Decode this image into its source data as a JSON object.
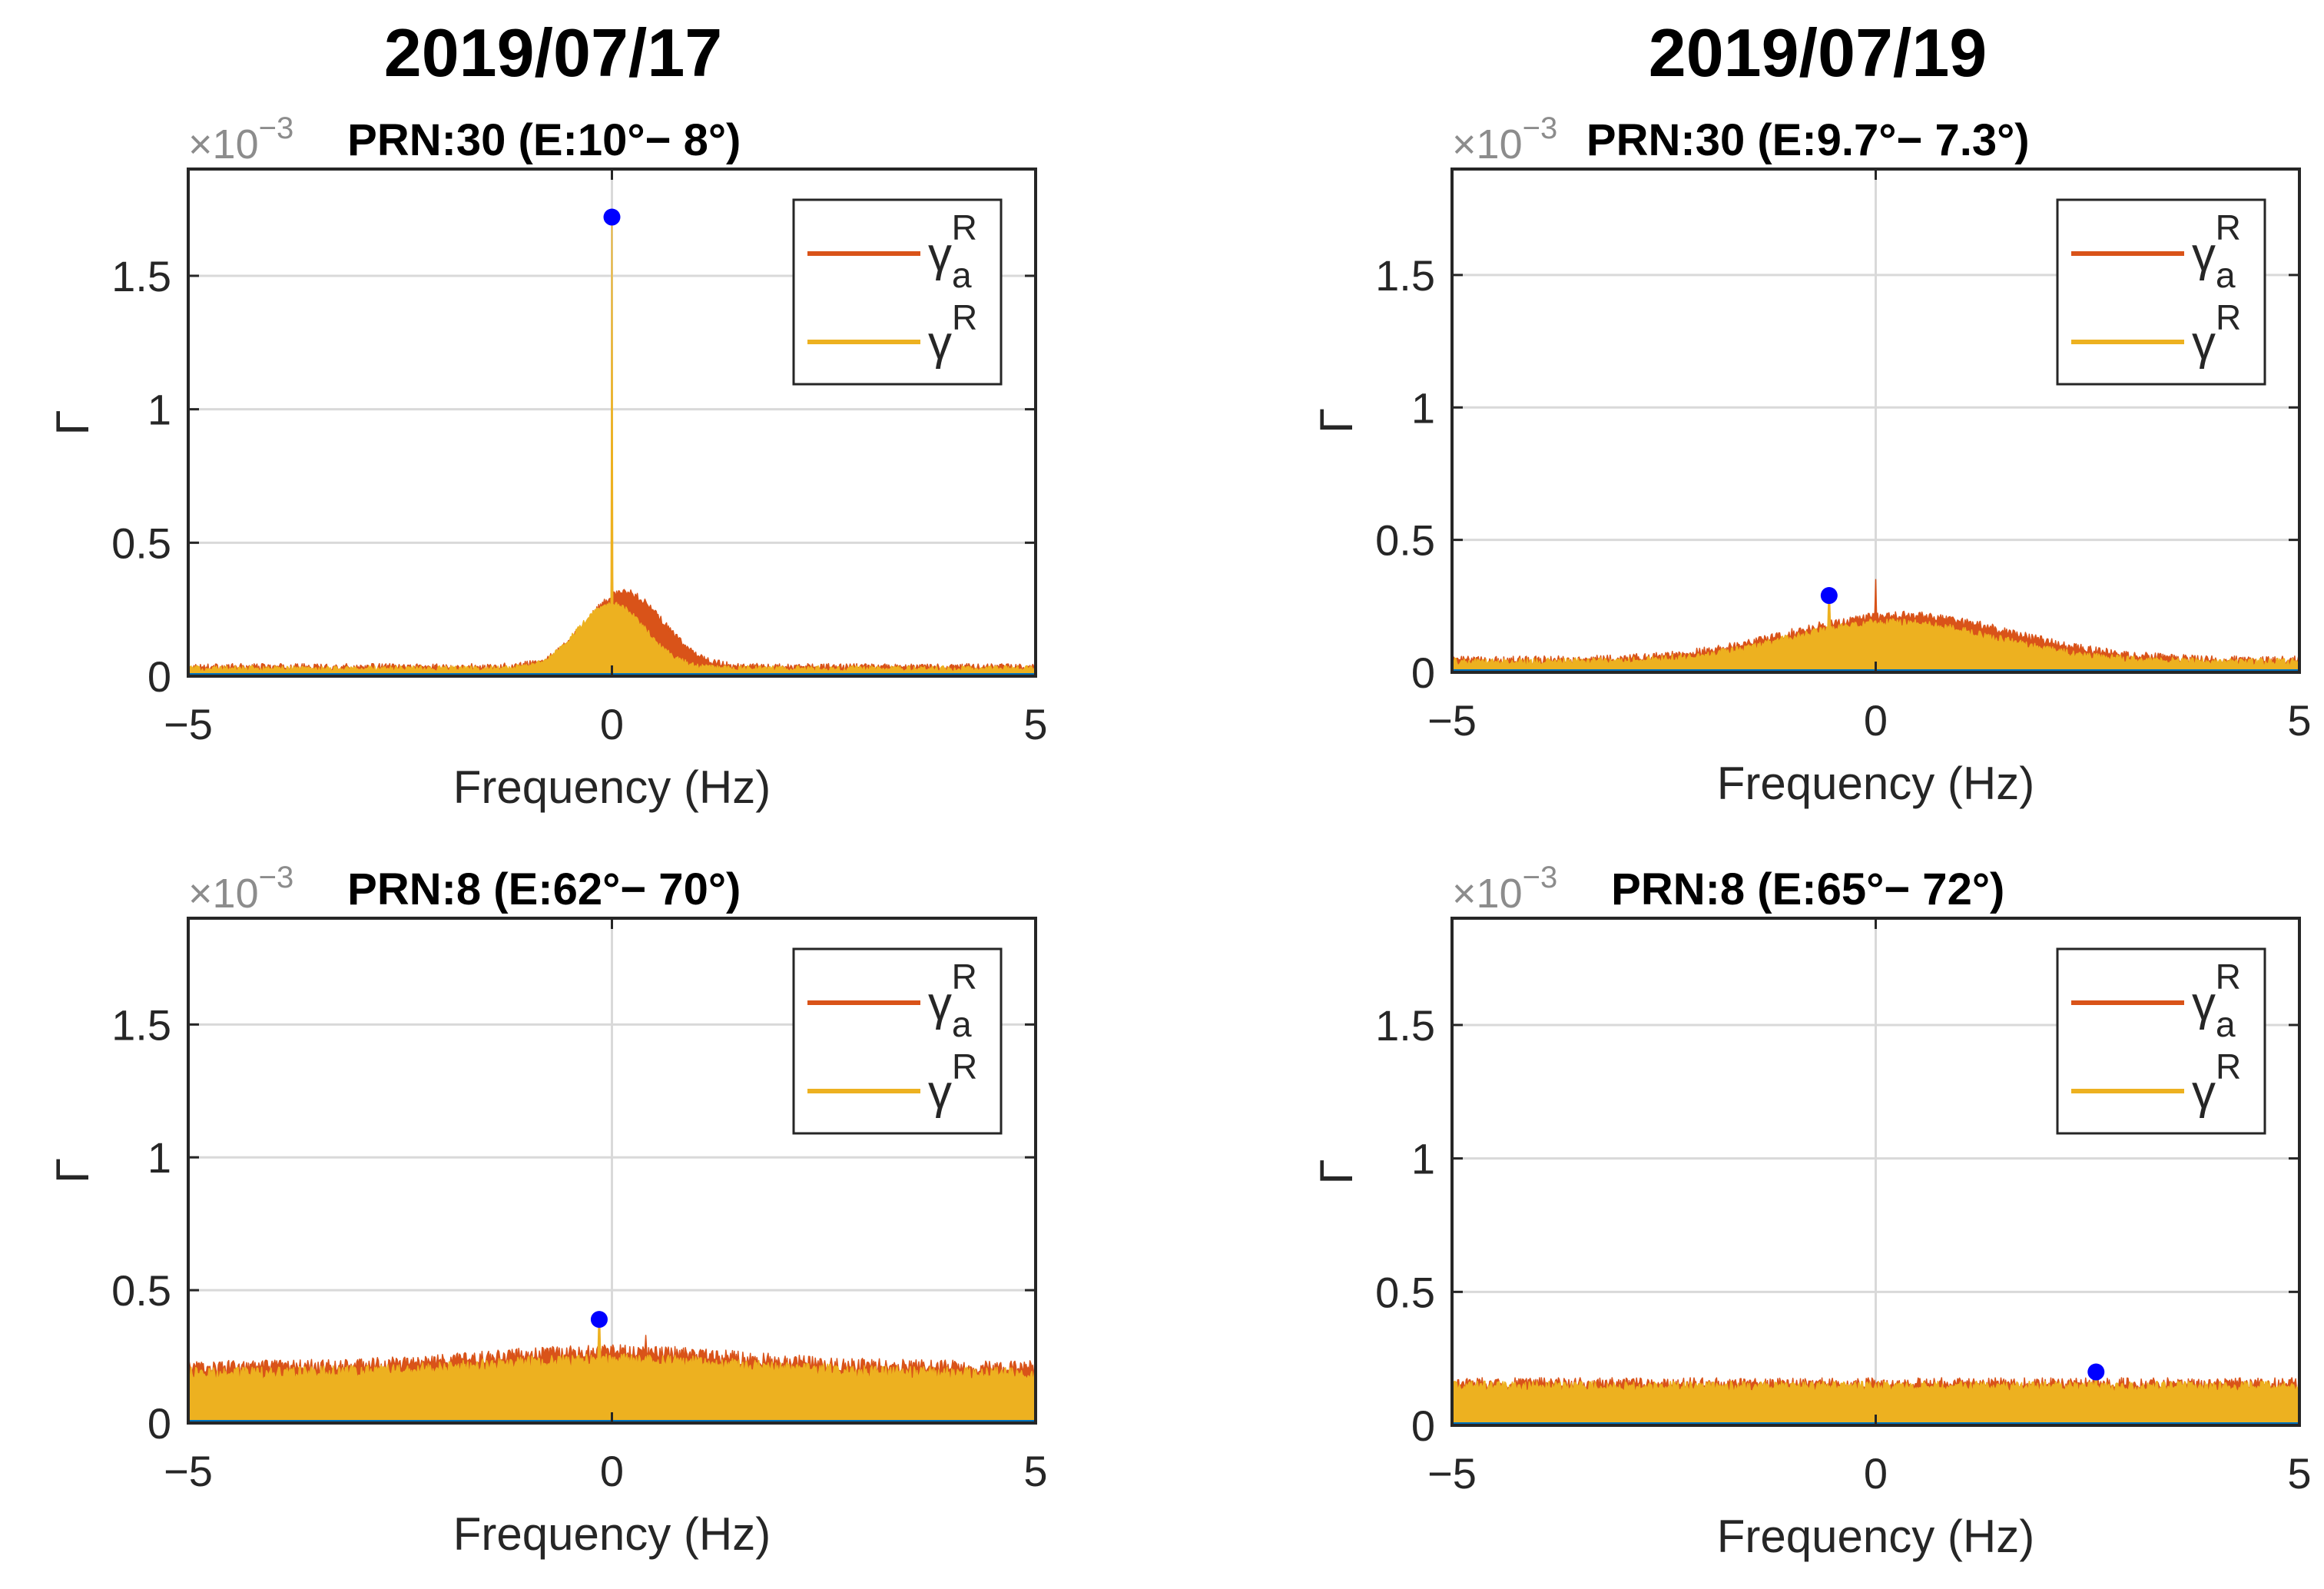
{
  "headers": {
    "left_date": "2019/07/17",
    "right_date": "2019/07/19"
  },
  "colors": {
    "gamma_a": "#d95319",
    "gamma": "#edb120",
    "marker": "#0000ff",
    "baseline": "#0072bd",
    "grid": "#d9d9d9",
    "axis": "#262626"
  },
  "chart_data": [
    {
      "type": "area",
      "title": "PRN:30 (E:10°− 8°)",
      "xlabel": "Frequency (Hz)",
      "ylabel": "Γ",
      "exponent_label": "×10",
      "exponent": "−3",
      "xlim": [
        -5,
        5
      ],
      "ylim": [
        0,
        1.9
      ],
      "xticks": [
        -5,
        0,
        5
      ],
      "xtick_labels": [
        "−5",
        "0",
        "5"
      ],
      "yticks": [
        0,
        0.5,
        1,
        1.5
      ],
      "ytick_labels": [
        "0",
        "0.5",
        "1",
        "1.5"
      ],
      "grid": true,
      "legend": {
        "position": "top-right",
        "entries": [
          {
            "symbol": "γ",
            "sub": "a",
            "sup": "R"
          },
          {
            "symbol": "γ",
            "sup": "R"
          }
        ]
      },
      "series": [
        {
          "name": "gamma_a^R",
          "profile": {
            "floor": 0.03,
            "peak_center": 0.15,
            "peak_height": 0.28,
            "peak_width": 0.9,
            "noise": 0.012,
            "spike_x": 0.0,
            "spike_y": 0.48
          }
        },
        {
          "name": "gamma^R",
          "profile": {
            "floor": 0.025,
            "peak_center": 0.0,
            "peak_height": 0.24,
            "peak_width": 0.8,
            "noise": 0.01,
            "spike_x": 0.0,
            "spike_y": 1.72
          }
        }
      ],
      "marker": {
        "x": 0.0,
        "y": 1.72
      }
    },
    {
      "type": "area",
      "title": "PRN:30 (E:9.7°− 7.3°)",
      "xlabel": "Frequency (Hz)",
      "ylabel": "Γ",
      "exponent_label": "×10",
      "exponent": "−3",
      "xlim": [
        -5,
        5
      ],
      "ylim": [
        0,
        1.9
      ],
      "xticks": [
        -5,
        0,
        5
      ],
      "xtick_labels": [
        "−5",
        "0",
        "5"
      ],
      "yticks": [
        0,
        0.5,
        1,
        1.5
      ],
      "ytick_labels": [
        "0",
        "0.5",
        "1",
        "1.5"
      ],
      "grid": true,
      "legend": {
        "position": "top-right",
        "entries": [
          {
            "symbol": "γ",
            "sub": "a",
            "sup": "R"
          },
          {
            "symbol": "γ",
            "sup": "R"
          }
        ]
      },
      "series": [
        {
          "name": "gamma_a^R",
          "profile": {
            "floor": 0.04,
            "peak_center": 0.3,
            "peak_height": 0.17,
            "peak_width": 2.6,
            "noise": 0.015,
            "spike_x": 0.0,
            "spike_y": 0.35
          }
        },
        {
          "name": "gamma^R",
          "profile": {
            "floor": 0.035,
            "peak_center": 0.2,
            "peak_height": 0.15,
            "peak_width": 2.4,
            "noise": 0.013,
            "spike_x": -0.55,
            "spike_y": 0.29
          }
        }
      ],
      "marker": {
        "x": -0.55,
        "y": 0.29
      }
    },
    {
      "type": "area",
      "title": "PRN:8 (E:62°− 70°)",
      "xlabel": "Frequency (Hz)",
      "ylabel": "Γ",
      "exponent_label": "×10",
      "exponent": "−3",
      "xlim": [
        -5,
        5
      ],
      "ylim": [
        0,
        1.9
      ],
      "xticks": [
        -5,
        0,
        5
      ],
      "xtick_labels": [
        "−5",
        "0",
        "5"
      ],
      "yticks": [
        0,
        0.5,
        1,
        1.5
      ],
      "ytick_labels": [
        "0",
        "0.5",
        "1",
        "1.5"
      ],
      "grid": true,
      "legend": {
        "position": "top-right",
        "entries": [
          {
            "symbol": "γ",
            "sub": "a",
            "sup": "R"
          },
          {
            "symbol": "γ",
            "sup": "R"
          }
        ]
      },
      "series": [
        {
          "name": "gamma_a^R",
          "profile": {
            "floor": 0.2,
            "peak_center": 0.0,
            "peak_height": 0.06,
            "peak_width": 3.0,
            "noise": 0.025,
            "spike_x": 0.4,
            "spike_y": 0.33
          }
        },
        {
          "name": "gamma^R",
          "profile": {
            "floor": 0.18,
            "peak_center": 0.0,
            "peak_height": 0.05,
            "peak_width": 3.0,
            "noise": 0.022,
            "spike_x": -0.15,
            "spike_y": 0.39
          }
        }
      ],
      "marker": {
        "x": -0.15,
        "y": 0.39
      }
    },
    {
      "type": "area",
      "title": "PRN:8 (E:65°− 72°)",
      "xlabel": "Frequency (Hz)",
      "ylabel": "Γ",
      "exponent_label": "×10",
      "exponent": "−3",
      "xlim": [
        -5,
        5
      ],
      "ylim": [
        0,
        1.9
      ],
      "xticks": [
        -5,
        0,
        5
      ],
      "xtick_labels": [
        "−5",
        "0",
        "5"
      ],
      "yticks": [
        0,
        0.5,
        1,
        1.5
      ],
      "ytick_labels": [
        "0",
        "0.5",
        "1",
        "1.5"
      ],
      "grid": true,
      "legend": {
        "position": "top-right",
        "entries": [
          {
            "symbol": "γ",
            "sub": "a",
            "sup": "R"
          },
          {
            "symbol": "γ",
            "sup": "R"
          }
        ]
      },
      "series": [
        {
          "name": "gamma_a^R",
          "profile": {
            "floor": 0.15,
            "peak_center": 0.0,
            "peak_height": 0.0,
            "peak_width": 3.0,
            "noise": 0.02,
            "spike_x": 2.6,
            "spike_y": 0.19
          }
        },
        {
          "name": "gamma^R",
          "profile": {
            "floor": 0.14,
            "peak_center": 0.0,
            "peak_height": 0.0,
            "peak_width": 3.0,
            "noise": 0.018,
            "spike_x": 2.6,
            "spike_y": 0.2
          }
        }
      ],
      "marker": {
        "x": 2.6,
        "y": 0.2
      }
    }
  ]
}
